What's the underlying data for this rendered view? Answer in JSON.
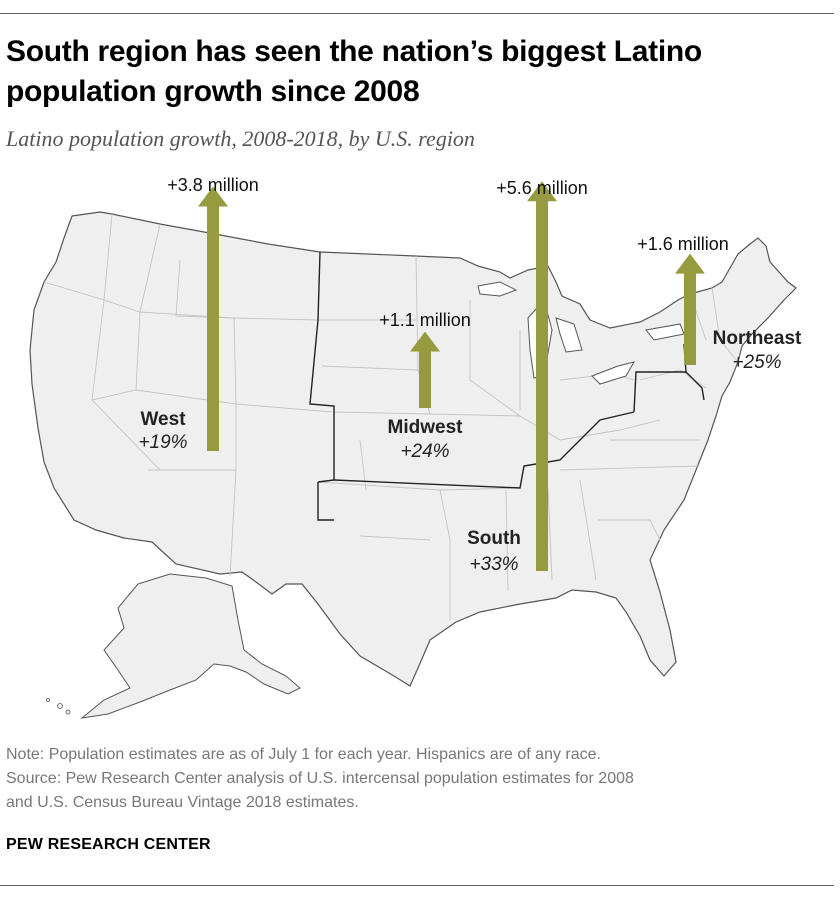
{
  "title": "South region has seen the nation’s biggest Latino population growth since 2008",
  "subtitle": "Latino population growth, 2008-2018, by U.S. region",
  "regions": [
    {
      "key": "west",
      "name": "West",
      "pct": "+19%",
      "growth_label": "+3.8 million",
      "growth_millions": 3.8
    },
    {
      "key": "midwest",
      "name": "Midwest",
      "pct": "+24%",
      "growth_label": "+1.1 million",
      "growth_millions": 1.1
    },
    {
      "key": "south",
      "name": "South",
      "pct": "+33%",
      "growth_label": "+5.6 million",
      "growth_millions": 5.6
    },
    {
      "key": "northeast",
      "name": "Northeast",
      "pct": "+25%",
      "growth_label": "+1.6 million",
      "growth_millions": 1.6
    }
  ],
  "colors": {
    "arrow": "#959b3e",
    "land": "#efefef",
    "state_border": "#c8c8c8",
    "region_border": "#222222"
  },
  "note": "Note: Population estimates are as of July 1 for each year. Hispanics are of any race.",
  "source_line1": "Source: Pew Research Center analysis of U.S. intercensal population estimates for 2008",
  "source_line2": "and U.S. Census Bureau Vintage 2018 estimates.",
  "logo": "PEW RESEARCH CENTER"
}
